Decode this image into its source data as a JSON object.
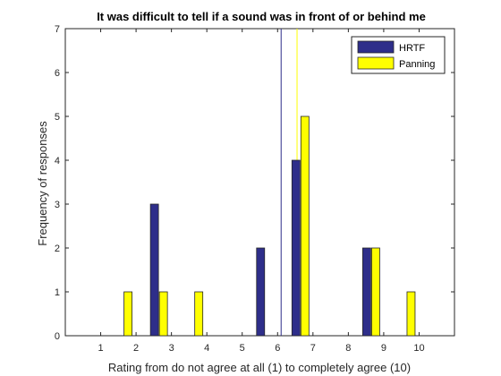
{
  "chart_data": {
    "type": "bar",
    "title": "It was difficult to tell if a sound was in front of or behind me",
    "xlabel": "Rating from do not agree at all (1) to completely agree (10)",
    "ylabel": "Frequency of responses",
    "x": [
      1,
      2,
      3,
      4,
      5,
      6,
      7,
      8,
      9,
      10
    ],
    "xlim": [
      0,
      11
    ],
    "ylim": [
      0,
      7
    ],
    "yticks": [
      0,
      1,
      2,
      3,
      4,
      5,
      6,
      7
    ],
    "series": [
      {
        "name": "HRTF",
        "color": "#2e2e8a",
        "values": [
          0,
          0,
          3,
          0,
          0,
          2,
          4,
          0,
          2,
          0
        ]
      },
      {
        "name": "Panning",
        "color": "#ffff00",
        "values": [
          0,
          1,
          1,
          1,
          0,
          0,
          5,
          0,
          2,
          1
        ]
      }
    ],
    "reference_lines": [
      {
        "x": 6.1,
        "color": "#2e2e8a"
      },
      {
        "x": 6.55,
        "color": "#ffff00"
      }
    ],
    "legend_placement": "top-right",
    "grid": false
  }
}
